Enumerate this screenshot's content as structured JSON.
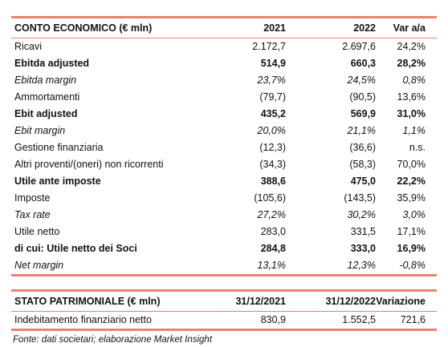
{
  "income": {
    "header": [
      "CONTO ECONOMICO (€ mln)",
      "2021",
      "2022",
      "Var a/a"
    ],
    "rows": [
      {
        "label": "Ricavi",
        "v2021": "2.172,7",
        "v2022": "2.697,6",
        "var": "24,2%",
        "style": "normal"
      },
      {
        "label": "Ebitda adjusted",
        "v2021": "514,9",
        "v2022": "660,3",
        "var": "28,2%",
        "style": "bold"
      },
      {
        "label": "Ebitda margin",
        "v2021": "23,7%",
        "v2022": "24,5%",
        "var": "0,8%",
        "style": "italic"
      },
      {
        "label": "Ammortamenti",
        "v2021": "(79,7)",
        "v2022": "(90,5)",
        "var": "13,6%",
        "style": "normal"
      },
      {
        "label": "Ebit adjusted",
        "v2021": "435,2",
        "v2022": "569,9",
        "var": "31,0%",
        "style": "bold"
      },
      {
        "label": "Ebit margin",
        "v2021": "20,0%",
        "v2022": "21,1%",
        "var": "1,1%",
        "style": "italic"
      },
      {
        "label": "Gestione finanziaria",
        "v2021": "(12,3)",
        "v2022": "(36,6)",
        "var": "n.s.",
        "style": "normal"
      },
      {
        "label": "Altri proventi/(oneri) non ricorrenti",
        "v2021": "(34,3)",
        "v2022": "(58,3)",
        "var": "70,0%",
        "style": "normal"
      },
      {
        "label": "Utile ante imposte",
        "v2021": "388,6",
        "v2022": "475,0",
        "var": "22,2%",
        "style": "bold"
      },
      {
        "label": "Imposte",
        "v2021": "(105,6)",
        "v2022": "(143,5)",
        "var": "35,9%",
        "style": "normal"
      },
      {
        "label": "Tax rate",
        "v2021": "27,2%",
        "v2022": "30,2%",
        "var": "3,0%",
        "style": "italic"
      },
      {
        "label": "Utile netto",
        "v2021": "283,0",
        "v2022": "331,5",
        "var": "17,1%",
        "style": "normal"
      },
      {
        "label": "di cui: Utile netto dei Soci",
        "v2021": "284,8",
        "v2022": "333,0",
        "var": "16,9%",
        "style": "bold"
      },
      {
        "label": "Net margin",
        "v2021": "13,1%",
        "v2022": "12,3%",
        "var": "-0,8%",
        "style": "italic"
      }
    ]
  },
  "balance": {
    "header": [
      "STATO PATRIMONIALE (€ mln)",
      "31/12/2021",
      "31/12/2022",
      "Variazione"
    ],
    "rows": [
      {
        "label": "Indebitamento finanziario netto",
        "v2021": "830,9",
        "v2022": "1.552,5",
        "var": "721,6",
        "style": "normal"
      }
    ]
  },
  "source": "Fonte: dati societari; elaborazione Market Insight",
  "colors": {
    "rule": "#e9826f",
    "text": "#111111"
  }
}
